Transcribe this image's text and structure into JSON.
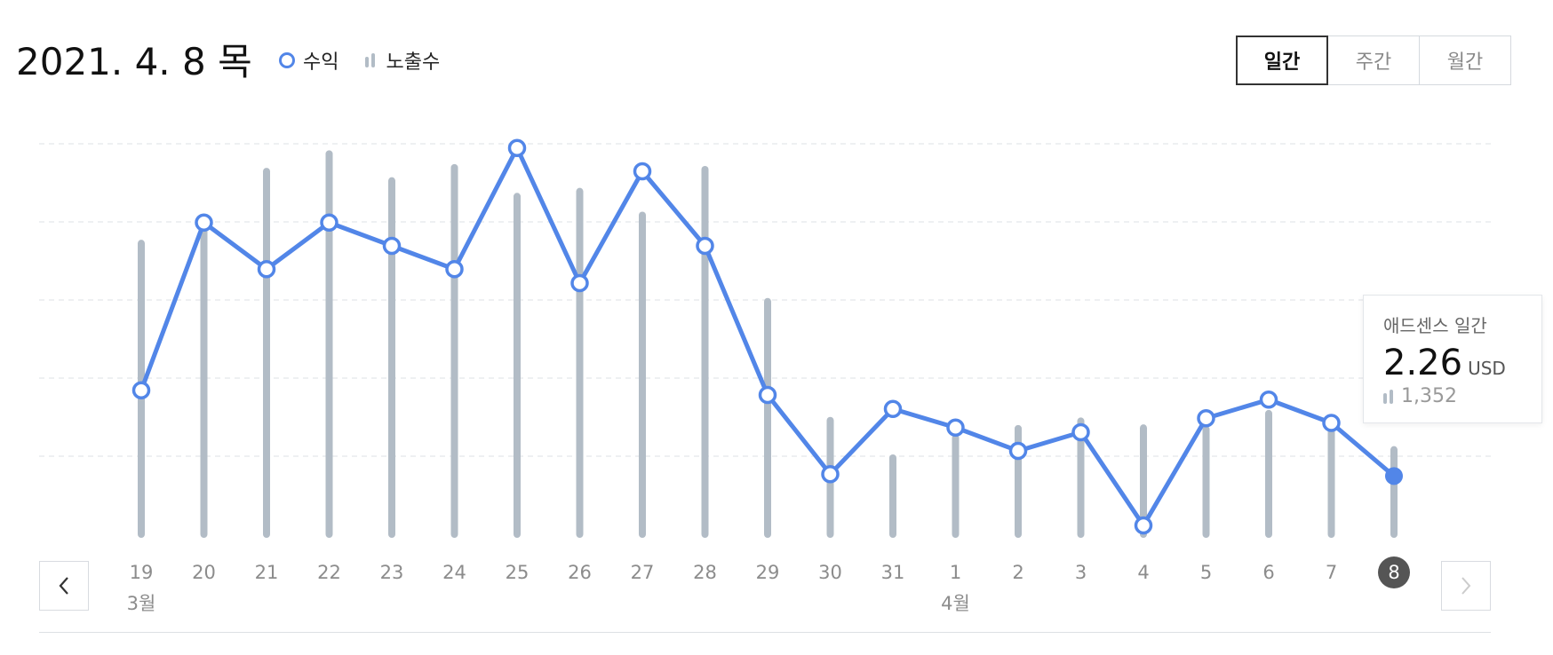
{
  "header": {
    "date": "2021. 4. 8 목"
  },
  "legend": {
    "revenue": "수익",
    "impressions": "노출수"
  },
  "period_tabs": [
    {
      "label": "일간",
      "active": true
    },
    {
      "label": "주간",
      "active": false
    },
    {
      "label": "월간",
      "active": false
    }
  ],
  "tooltip": {
    "title": "애드센스 일간",
    "value": "2.26",
    "unit": "USD",
    "impressions": "1,352"
  },
  "nav": {
    "prev_icon": "chevron-left-icon",
    "next_icon": "chevron-right-icon"
  },
  "colors": {
    "revenue_line": "#5286e8",
    "impression_bar": "#b2bcc6",
    "selected_day": "#555555"
  },
  "chart_data": {
    "type": "line",
    "categories": [
      "19",
      "20",
      "21",
      "22",
      "23",
      "24",
      "25",
      "26",
      "27",
      "28",
      "29",
      "30",
      "31",
      "1",
      "2",
      "3",
      "4",
      "5",
      "6",
      "7",
      "8"
    ],
    "month_labels": [
      {
        "at": "19",
        "label": "3월"
      },
      {
        "at": "1",
        "label": "4월"
      }
    ],
    "selected": "8",
    "grid": true,
    "legend_position": "top-left",
    "series": [
      {
        "name": "수익",
        "type": "line",
        "values": [
          4.1,
          7.7,
          6.7,
          7.7,
          7.2,
          6.7,
          9.3,
          6.4,
          8.8,
          7.2,
          4.0,
          2.3,
          3.7,
          3.3,
          2.8,
          3.2,
          1.2,
          3.5,
          3.9,
          3.4,
          2.26
        ]
      },
      {
        "name": "노출수",
        "type": "bar",
        "values": [
          4650,
          4950,
          5800,
          6080,
          5650,
          5860,
          5400,
          5480,
          5100,
          5830,
          3720,
          1820,
          1220,
          1540,
          1690,
          1810,
          1700,
          1680,
          1930,
          1820,
          1352
        ]
      }
    ]
  }
}
